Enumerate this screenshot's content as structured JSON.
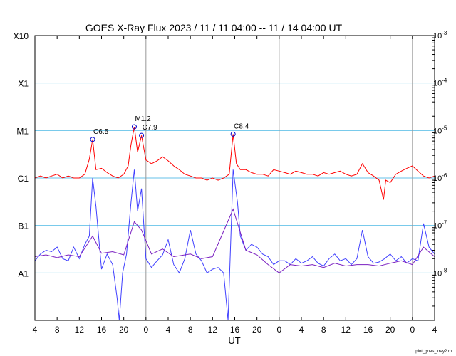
{
  "chart_data": {
    "type": "line",
    "title": "GOES X-Ray Flux   2023 / 11 / 11   04:00 -- 11 / 14   04:00   UT",
    "xlabel": "UT",
    "x_ticks": [
      "4",
      "8",
      "12",
      "16",
      "20",
      "0",
      "4",
      "8",
      "12",
      "16",
      "20",
      "0",
      "4",
      "8",
      "12",
      "16",
      "20",
      "0",
      "4"
    ],
    "day_boundary_hours": [
      20,
      44,
      68
    ],
    "x_range_hours": [
      0,
      72
    ],
    "y_scale": "log",
    "y_range": [
      1e-09,
      0.001
    ],
    "y_left_labels": [
      {
        "label": "X10",
        "value": 0.001
      },
      {
        "label": "X1",
        "value": 0.0001
      },
      {
        "label": "M1",
        "value": 1e-05
      },
      {
        "label": "C1",
        "value": 1e-06
      },
      {
        "label": "B1",
        "value": 1e-07
      },
      {
        "label": "A1",
        "value": 1e-08
      }
    ],
    "y_right_labels": [
      {
        "mant": "10",
        "exp": "-3",
        "value": 0.001
      },
      {
        "mant": "10",
        "exp": "-4",
        "value": 0.0001
      },
      {
        "mant": "10",
        "exp": "-5",
        "value": 1e-05
      },
      {
        "mant": "10",
        "exp": "-6",
        "value": 1e-06
      },
      {
        "mant": "10",
        "exp": "-7",
        "value": 1e-07
      },
      {
        "mant": "10",
        "exp": "-8",
        "value": 1e-08
      }
    ],
    "grid_lines": [
      0.0001,
      1e-05,
      1e-06,
      1e-07,
      1e-08
    ],
    "flare_annotations": [
      {
        "label": "C6.5",
        "t": 10.4,
        "value": 6.5e-06
      },
      {
        "label": "M1.2",
        "t": 17.9,
        "value": 1.2e-05
      },
      {
        "label": "C7.9",
        "t": 19.2,
        "value": 7.9e-06
      },
      {
        "label": "C8.4",
        "t": 35.7,
        "value": 8.4e-06
      }
    ],
    "series": [
      {
        "color": "#ff0000",
        "points": [
          [
            0,
            1e-06
          ],
          [
            1,
            1.1e-06
          ],
          [
            2,
            1e-06
          ],
          [
            3,
            1.1e-06
          ],
          [
            4,
            1.2e-06
          ],
          [
            5,
            1e-06
          ],
          [
            6,
            1.1e-06
          ],
          [
            7,
            1e-06
          ],
          [
            8,
            1e-06
          ],
          [
            9,
            1.2e-06
          ],
          [
            9.8,
            2.5e-06
          ],
          [
            10.4,
            6.5e-06
          ],
          [
            11,
            1.5e-06
          ],
          [
            12,
            1.6e-06
          ],
          [
            13,
            1.3e-06
          ],
          [
            14,
            1.1e-06
          ],
          [
            15,
            1e-06
          ],
          [
            16,
            1.2e-06
          ],
          [
            16.8,
            1.8e-06
          ],
          [
            17.3,
            5e-06
          ],
          [
            17.9,
            1.2e-05
          ],
          [
            18.5,
            3.5e-06
          ],
          [
            19.2,
            7.9e-06
          ],
          [
            20,
            2.4e-06
          ],
          [
            21,
            2e-06
          ],
          [
            22,
            2.3e-06
          ],
          [
            23,
            2.8e-06
          ],
          [
            24,
            2.3e-06
          ],
          [
            25,
            1.8e-06
          ],
          [
            26,
            1.5e-06
          ],
          [
            27,
            1.2e-06
          ],
          [
            28,
            1.1e-06
          ],
          [
            29,
            1e-06
          ],
          [
            30,
            1e-06
          ],
          [
            31,
            9e-07
          ],
          [
            32,
            1e-06
          ],
          [
            33,
            9e-07
          ],
          [
            34,
            1e-06
          ],
          [
            35,
            1.2e-06
          ],
          [
            35.7,
            8.4e-06
          ],
          [
            36.3,
            2e-06
          ],
          [
            37,
            1.5e-06
          ],
          [
            38,
            1.5e-06
          ],
          [
            39,
            1.3e-06
          ],
          [
            40,
            1.2e-06
          ],
          [
            41,
            1.2e-06
          ],
          [
            42,
            1.1e-06
          ],
          [
            43,
            1.5e-06
          ],
          [
            44,
            1.4e-06
          ],
          [
            45,
            1.3e-06
          ],
          [
            46,
            1.2e-06
          ],
          [
            47,
            1.4e-06
          ],
          [
            48,
            1.3e-06
          ],
          [
            49,
            1.2e-06
          ],
          [
            50,
            1.2e-06
          ],
          [
            51,
            1.1e-06
          ],
          [
            52,
            1.3e-06
          ],
          [
            53,
            1.2e-06
          ],
          [
            54,
            1.3e-06
          ],
          [
            55,
            1.4e-06
          ],
          [
            56,
            1.2e-06
          ],
          [
            57,
            1.1e-06
          ],
          [
            58,
            1.2e-06
          ],
          [
            59,
            2e-06
          ],
          [
            60,
            1.3e-06
          ],
          [
            61,
            1.1e-06
          ],
          [
            62,
            9e-07
          ],
          [
            62.8,
            3.5e-07
          ],
          [
            63.2,
            9e-07
          ],
          [
            64,
            8e-07
          ],
          [
            65,
            1.2e-06
          ],
          [
            66,
            1.4e-06
          ],
          [
            67,
            1.6e-06
          ],
          [
            68,
            1.8e-06
          ],
          [
            69,
            1.4e-06
          ],
          [
            70,
            1.1e-06
          ],
          [
            71,
            1e-06
          ],
          [
            72,
            1.1e-06
          ]
        ]
      },
      {
        "color": "#4040ff",
        "points": [
          [
            0,
            1.8e-08
          ],
          [
            1,
            2.5e-08
          ],
          [
            2,
            3e-08
          ],
          [
            3,
            2.8e-08
          ],
          [
            4,
            3.5e-08
          ],
          [
            5,
            2e-08
          ],
          [
            6,
            1.8e-08
          ],
          [
            7,
            3.5e-08
          ],
          [
            8,
            2e-08
          ],
          [
            9,
            4e-08
          ],
          [
            9.8,
            6e-08
          ],
          [
            10.4,
            1e-06
          ],
          [
            11,
            2.5e-07
          ],
          [
            12,
            1.2e-08
          ],
          [
            13,
            2.5e-08
          ],
          [
            14,
            1.5e-08
          ],
          [
            14.8,
            3e-09
          ],
          [
            15.2,
            8e-10
          ],
          [
            15.8,
            1e-08
          ],
          [
            16.5,
            2.5e-08
          ],
          [
            17.3,
            3e-07
          ],
          [
            17.9,
            1.5e-06
          ],
          [
            18.5,
            2e-07
          ],
          [
            19.2,
            6e-07
          ],
          [
            20,
            2e-08
          ],
          [
            21,
            1.3e-08
          ],
          [
            22,
            1.8e-08
          ],
          [
            23,
            2.4e-08
          ],
          [
            24,
            5e-08
          ],
          [
            25,
            1.5e-08
          ],
          [
            26,
            1e-08
          ],
          [
            27,
            2e-08
          ],
          [
            28,
            8e-08
          ],
          [
            29,
            2.5e-08
          ],
          [
            30,
            1.8e-08
          ],
          [
            31,
            1e-08
          ],
          [
            32,
            1.2e-08
          ],
          [
            33,
            1.3e-08
          ],
          [
            34,
            1e-08
          ],
          [
            34.8,
            8e-10
          ],
          [
            35.7,
            1.5e-06
          ],
          [
            36.5,
            3e-07
          ],
          [
            37,
            6e-08
          ],
          [
            38,
            3e-08
          ],
          [
            39,
            4e-08
          ],
          [
            40,
            3.5e-08
          ],
          [
            41,
            2.5e-08
          ],
          [
            42,
            2.2e-08
          ],
          [
            43,
            1.5e-08
          ],
          [
            44,
            1.8e-08
          ],
          [
            45,
            1.8e-08
          ],
          [
            46,
            1.5e-08
          ],
          [
            47,
            2e-08
          ],
          [
            48,
            1.6e-08
          ],
          [
            49,
            1.8e-08
          ],
          [
            50,
            2.2e-08
          ],
          [
            51,
            1.6e-08
          ],
          [
            52,
            1.4e-08
          ],
          [
            53,
            2e-08
          ],
          [
            54,
            2.5e-08
          ],
          [
            55,
            1.8e-08
          ],
          [
            56,
            2e-08
          ],
          [
            57,
            1.5e-08
          ],
          [
            58,
            2e-08
          ],
          [
            59,
            8e-08
          ],
          [
            60,
            2.2e-08
          ],
          [
            61,
            1.6e-08
          ],
          [
            62,
            1.7e-08
          ],
          [
            63,
            2e-08
          ],
          [
            64,
            2.5e-08
          ],
          [
            65,
            1.8e-08
          ],
          [
            66,
            2.2e-08
          ],
          [
            67,
            1.6e-08
          ],
          [
            68,
            2e-08
          ],
          [
            69,
            1.8e-08
          ],
          [
            70,
            1.1e-07
          ],
          [
            71,
            3.5e-08
          ],
          [
            72,
            2.5e-08
          ]
        ]
      },
      {
        "color": "#7a1fc0",
        "points": [
          [
            0,
            2.2e-08
          ],
          [
            2,
            2.4e-08
          ],
          [
            4,
            2.1e-08
          ],
          [
            6,
            2.4e-08
          ],
          [
            8,
            2.2e-08
          ],
          [
            10.4,
            6e-08
          ],
          [
            12,
            2.6e-08
          ],
          [
            14,
            2.8e-08
          ],
          [
            16,
            2.4e-08
          ],
          [
            17.9,
            1.2e-07
          ],
          [
            19.2,
            8e-08
          ],
          [
            21,
            2.5e-08
          ],
          [
            23,
            3.2e-08
          ],
          [
            25,
            2.2e-08
          ],
          [
            28,
            2.5e-08
          ],
          [
            30,
            2e-08
          ],
          [
            32,
            2.2e-08
          ],
          [
            35.7,
            2.2e-07
          ],
          [
            38,
            3e-08
          ],
          [
            40,
            2.4e-08
          ],
          [
            42,
            1.5e-08
          ],
          [
            44,
            1e-08
          ],
          [
            46,
            1.5e-08
          ],
          [
            48,
            1.4e-08
          ],
          [
            50,
            1.5e-08
          ],
          [
            52,
            1.3e-08
          ],
          [
            54,
            1.6e-08
          ],
          [
            56,
            1.4e-08
          ],
          [
            58,
            1.5e-08
          ],
          [
            60,
            1.5e-08
          ],
          [
            62,
            1.4e-08
          ],
          [
            64,
            1.6e-08
          ],
          [
            66,
            1.8e-08
          ],
          [
            68,
            1.5e-08
          ],
          [
            70,
            3.5e-08
          ],
          [
            72,
            2.2e-08
          ]
        ]
      }
    ]
  },
  "credit": "plot_goes_xray2.m"
}
